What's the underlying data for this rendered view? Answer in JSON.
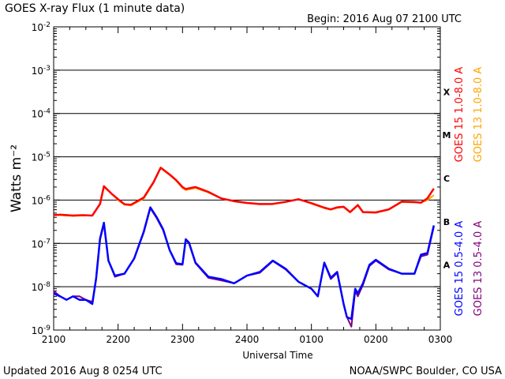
{
  "header": {
    "title": "GOES X-ray Flux (1 minute data)",
    "begin": "Begin: 2016 Aug 07 2100 UTC"
  },
  "footer": {
    "updated": "Updated 2016 Aug  8 0254 UTC",
    "credit": "NOAA/SWPC Boulder, CO USA"
  },
  "chart_data": {
    "type": "line",
    "ylabel": "Watts m⁻²",
    "xlabel": "Universal Time",
    "y_scale": "log",
    "ylim": [
      1e-09,
      0.01
    ],
    "xlim": [
      0,
      6
    ],
    "x_tick_labels": [
      "2100",
      "2200",
      "2300",
      "2400",
      "0100",
      "0200",
      "0300"
    ],
    "y_tick_labels": [
      {
        "exp": -9,
        "text": "10",
        "sup": "-9"
      },
      {
        "exp": -8,
        "text": "10",
        "sup": "-8"
      },
      {
        "exp": -7,
        "text": "10",
        "sup": "-7"
      },
      {
        "exp": -6,
        "text": "10",
        "sup": "-6"
      },
      {
        "exp": -5,
        "text": "10",
        "sup": "-5"
      },
      {
        "exp": -4,
        "text": "10",
        "sup": "-4"
      },
      {
        "exp": -3,
        "text": "10",
        "sup": "-3"
      },
      {
        "exp": -2,
        "text": "10",
        "sup": "-2"
      }
    ],
    "flare_classes": [
      {
        "label": "A",
        "exp": -8
      },
      {
        "label": "B",
        "exp": -7
      },
      {
        "label": "C",
        "exp": -6
      },
      {
        "label": "M",
        "exp": -5
      },
      {
        "label": "X",
        "exp": -4
      }
    ],
    "grid_lines_exp": [
      -8,
      -7,
      -6,
      -5,
      -4,
      -3
    ],
    "series": [
      {
        "name": "GOES 13 1.0-8.0 A",
        "color": "#ffa500",
        "x": [
          0,
          0.1,
          0.3,
          0.45,
          0.6,
          0.72,
          0.78,
          0.9,
          1.0,
          1.1,
          1.2,
          1.4,
          1.55,
          1.66,
          1.8,
          1.9,
          2.0,
          2.05,
          2.2,
          2.4,
          2.6,
          2.8,
          3.0,
          3.2,
          3.4,
          3.6,
          3.8,
          4.0,
          4.2,
          4.3,
          4.4,
          4.5,
          4.6,
          4.72,
          4.8,
          5.0,
          5.2,
          5.4,
          5.6,
          5.7,
          5.8,
          5.9
        ],
        "y": [
          4.5e-07,
          4.5e-07,
          4.3e-07,
          4.4e-07,
          4.4e-07,
          8e-07,
          2e-06,
          1.4e-06,
          1e-06,
          7.8e-07,
          7.5e-07,
          1.1e-06,
          2.5e-06,
          5.5e-06,
          3.8e-06,
          2.8e-06,
          1.9e-06,
          1.7e-06,
          1.9e-06,
          1.5e-06,
          1.1e-06,
          9.3e-07,
          8.5e-07,
          8e-07,
          8e-07,
          9e-07,
          1.05e-06,
          8.3e-07,
          6.5e-07,
          6e-07,
          6.6e-07,
          6.9e-07,
          5.2e-07,
          7.5e-07,
          5.2e-07,
          5.1e-07,
          6e-07,
          9e-07,
          8.8e-07,
          8.8e-07,
          1e-06,
          1.3e-06
        ]
      },
      {
        "name": "GOES 15 1.0-8.0 A",
        "color": "#ff0000",
        "x": [
          0,
          0.1,
          0.3,
          0.45,
          0.6,
          0.72,
          0.78,
          0.9,
          1.0,
          1.1,
          1.2,
          1.4,
          1.55,
          1.66,
          1.8,
          1.9,
          2.0,
          2.05,
          2.2,
          2.4,
          2.6,
          2.8,
          3.0,
          3.2,
          3.4,
          3.6,
          3.8,
          4.0,
          4.2,
          4.3,
          4.4,
          4.5,
          4.6,
          4.72,
          4.8,
          5.0,
          5.2,
          5.4,
          5.6,
          5.7,
          5.8,
          5.9
        ],
        "y": [
          4.5e-07,
          4.6e-07,
          4.4e-07,
          4.5e-07,
          4.4e-07,
          8.2e-07,
          2.1e-06,
          1.4e-06,
          1.05e-06,
          8e-07,
          7.8e-07,
          1.15e-06,
          2.6e-06,
          5.6e-06,
          3.9e-06,
          2.9e-06,
          2e-06,
          1.8e-06,
          2e-06,
          1.55e-06,
          1.1e-06,
          9.5e-07,
          8.6e-07,
          8.1e-07,
          8.2e-07,
          9.1e-07,
          1.05e-06,
          8.5e-07,
          6.7e-07,
          6.1e-07,
          6.8e-07,
          7e-07,
          5.3e-07,
          7.7e-07,
          5.3e-07,
          5.2e-07,
          6.1e-07,
          9.2e-07,
          9e-07,
          8.7e-07,
          1.1e-06,
          1.85e-06
        ]
      },
      {
        "name": "GOES 13 0.5-4.0 A",
        "color": "#800080",
        "x": [
          0,
          0.1,
          0.2,
          0.3,
          0.4,
          0.5,
          0.6,
          0.66,
          0.72,
          0.78,
          0.85,
          0.95,
          1.1,
          1.25,
          1.4,
          1.5,
          1.6,
          1.7,
          1.8,
          1.9,
          2.0,
          2.05,
          2.1,
          2.2,
          2.4,
          2.6,
          2.8,
          3.0,
          3.2,
          3.4,
          3.6,
          3.8,
          4.0,
          4.1,
          4.2,
          4.3,
          4.4,
          4.5,
          4.55,
          4.62,
          4.68,
          4.72,
          4.8,
          4.9,
          5.0,
          5.2,
          5.4,
          5.6,
          5.7,
          5.8,
          5.9
        ],
        "y": [
          8e-09,
          6e-09,
          5e-09,
          6e-09,
          6e-09,
          5e-09,
          4.5e-09,
          1.5e-08,
          1.2e-07,
          2.8e-07,
          4e-08,
          1.7e-08,
          2e-08,
          4.5e-08,
          1.8e-07,
          6.5e-07,
          3.8e-07,
          2e-07,
          7e-08,
          3.3e-08,
          3.2e-08,
          1.2e-07,
          1e-07,
          3.5e-08,
          1.6e-08,
          1.4e-08,
          1.2e-08,
          1.8e-08,
          2.1e-08,
          3.9e-08,
          2.5e-08,
          1.3e-08,
          9e-09,
          6e-09,
          3.5e-08,
          1.5e-08,
          2.1e-08,
          4e-09,
          2e-09,
          1.2e-09,
          8e-09,
          6e-09,
          1.1e-08,
          3e-08,
          4e-08,
          2.5e-08,
          2e-08,
          2e-08,
          5e-08,
          5.5e-08,
          2.4e-07
        ]
      },
      {
        "name": "GOES 15 0.5-4.0 A",
        "color": "#0000ff",
        "x": [
          0,
          0.1,
          0.2,
          0.3,
          0.4,
          0.5,
          0.6,
          0.66,
          0.72,
          0.78,
          0.85,
          0.95,
          1.1,
          1.25,
          1.4,
          1.5,
          1.6,
          1.7,
          1.8,
          1.9,
          2.0,
          2.05,
          2.1,
          2.2,
          2.4,
          2.6,
          2.8,
          3.0,
          3.2,
          3.4,
          3.6,
          3.8,
          4.0,
          4.1,
          4.2,
          4.3,
          4.4,
          4.5,
          4.55,
          4.62,
          4.68,
          4.72,
          4.8,
          4.9,
          5.0,
          5.2,
          5.4,
          5.6,
          5.7,
          5.8,
          5.9
        ],
        "y": [
          7e-09,
          6e-09,
          5e-09,
          6e-09,
          5e-09,
          5e-09,
          4e-09,
          1.6e-08,
          1.3e-07,
          3e-07,
          4e-08,
          1.8e-08,
          2e-08,
          4.5e-08,
          1.9e-07,
          6.8e-07,
          4e-07,
          2.1e-07,
          7e-08,
          3.5e-08,
          3.3e-08,
          1.25e-07,
          1.05e-07,
          3.6e-08,
          1.7e-08,
          1.5e-08,
          1.2e-08,
          1.8e-08,
          2.2e-08,
          4e-08,
          2.6e-08,
          1.3e-08,
          9e-09,
          6e-09,
          3.6e-08,
          1.6e-08,
          2.2e-08,
          4e-09,
          2e-09,
          1.8e-09,
          9e-09,
          7e-09,
          1.2e-08,
          3.2e-08,
          4.2e-08,
          2.6e-08,
          2e-08,
          2e-08,
          5.5e-08,
          6e-08,
          2.6e-07
        ]
      }
    ]
  }
}
